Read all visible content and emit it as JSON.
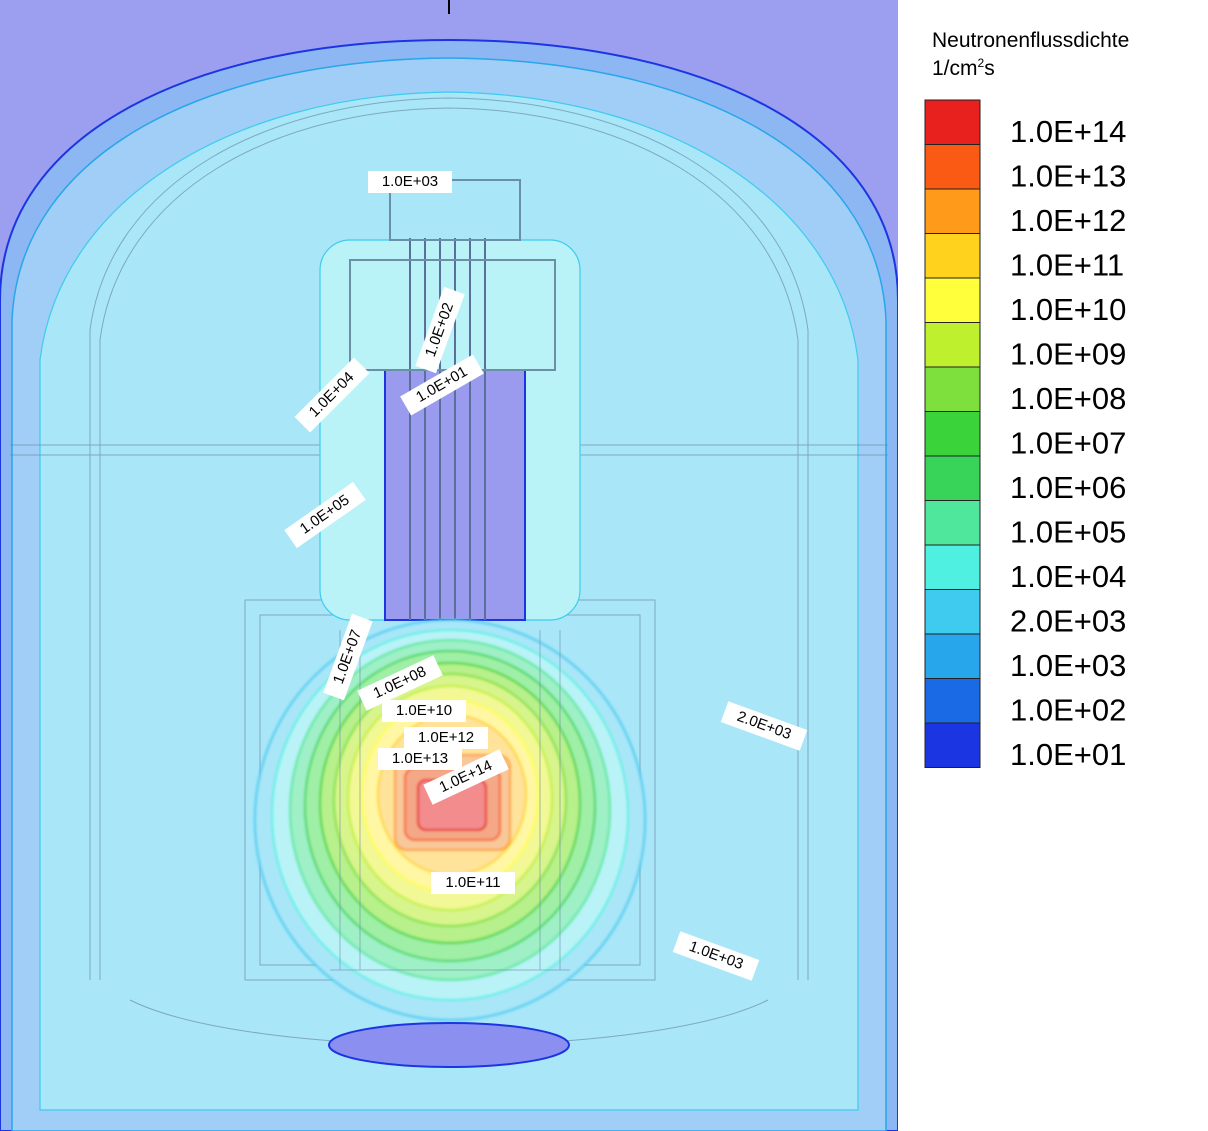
{
  "chart_data": {
    "type": "heatmap",
    "title": "",
    "legend": {
      "title": "Neutronenflussdichte",
      "unit_prefix": "1/cm",
      "unit_sup": "2",
      "unit_suffix": "s",
      "placement": "right",
      "levels": [
        {
          "label": "1.0E+14",
          "color": "#e8201e"
        },
        {
          "label": "1.0E+13",
          "color": "#fa5a14"
        },
        {
          "label": "1.0E+12",
          "color": "#ff9a1a"
        },
        {
          "label": "1.0E+11",
          "color": "#ffd21e"
        },
        {
          "label": "1.0E+10",
          "color": "#ffff3c"
        },
        {
          "label": "1.0E+09",
          "color": "#bff02e"
        },
        {
          "label": "1.0E+08",
          "color": "#7ee03c"
        },
        {
          "label": "1.0E+07",
          "color": "#3ad43a"
        },
        {
          "label": "1.0E+06",
          "color": "#38d45a"
        },
        {
          "label": "1.0E+05",
          "color": "#4fe79c"
        },
        {
          "label": "1.0E+04",
          "color": "#4ff0e2"
        },
        {
          "label": "2.0E+03",
          "color": "#3ecbef"
        },
        {
          "label": "1.0E+03",
          "color": "#27a6ec"
        },
        {
          "label": "1.0E+02",
          "color": "#1a6ae5"
        },
        {
          "label": "1.0E+01",
          "color": "#1c35e3"
        }
      ]
    },
    "contour_labels": [
      {
        "text": "1.0E+03",
        "angle": 0
      },
      {
        "text": "1.0E+02",
        "angle": -70
      },
      {
        "text": "1.0E+04",
        "angle": -45
      },
      {
        "text": "1.0E+01",
        "angle": -30
      },
      {
        "text": "1.0E+05",
        "angle": -35
      },
      {
        "text": "1.0E+07",
        "angle": -70
      },
      {
        "text": "1.0E+08",
        "angle": -25
      },
      {
        "text": "1.0E+10",
        "angle": 0
      },
      {
        "text": "1.0E+12",
        "angle": 0
      },
      {
        "text": "1.0E+13",
        "angle": 0
      },
      {
        "text": "1.0E+14",
        "angle": -25
      },
      {
        "text": "1.0E+11",
        "angle": 0
      },
      {
        "text": "2.0E+03",
        "angle": 20
      },
      {
        "text": "1.0E+03",
        "angle": 20
      }
    ]
  }
}
